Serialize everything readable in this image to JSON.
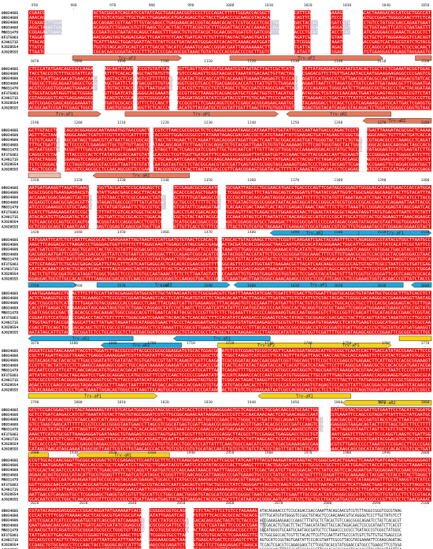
{
  "colors": {
    "conserved": "#ee1111",
    "partial": "#c9c9d8",
    "conserved_text": "#ffffff",
    "seq_text": "#111111",
    "primer_orange": "#e8785a",
    "primer_orange_light": "#f2b8a2",
    "primer_blue": "#1aa8de",
    "primer_yellow": "#f5d20d"
  },
  "sequence_names": [
    "OR934685",
    "OR934686",
    "OR934686",
    "OR934688",
    "MN831479",
    "KF375863",
    "KJ401715",
    "KJ620554",
    "AJ620555"
  ],
  "blocks": [
    {
      "ruler": [
        "950",
        "960",
        "970",
        "980",
        "990",
        "1000",
        "1010",
        "1020",
        "1030",
        "1040",
        "1050"
      ],
      "gaps": [
        [
          0.04,
          0.16
        ],
        [
          0.6,
          0.66
        ],
        [
          0.7,
          0.75
        ],
        [
          0.78,
          0.83
        ]
      ],
      "primers": [
        {
          "label": "Trv-aF3",
          "color": "orange",
          "dir": "right",
          "row": 0,
          "start": 0.11,
          "end": 0.38
        },
        {
          "label": "Trv-aF2",
          "color": "orange",
          "dir": "right",
          "row": 0,
          "start": 0.5,
          "end": 0.88
        },
        {
          "label": "",
          "color": "orange",
          "dir": "none",
          "row": 0,
          "start": 0.96,
          "end": 1.0
        }
      ]
    },
    {
      "ruler": [
        "1070",
        "1080",
        "1090",
        "1100",
        "1110",
        "1120",
        "1130",
        "1140",
        "1150",
        "1160"
      ],
      "gaps": [
        [
          0.16,
          0.19
        ],
        [
          0.26,
          0.27
        ],
        [
          0.35,
          0.37
        ],
        [
          0.66,
          0.68
        ]
      ],
      "primers": [
        {
          "label": "Trv-aF1",
          "color": "orange",
          "dir": "right",
          "row": 0,
          "start": 0.0,
          "end": 0.18
        },
        {
          "label": "Trv-aP1",
          "color": "orange",
          "dir": "right",
          "row": 0,
          "start": 0.24,
          "end": 0.62
        },
        {
          "label": "Trv-aR1",
          "color": "orange",
          "dir": "left",
          "row": 0,
          "start": 0.64,
          "end": 0.9
        },
        {
          "label": "Trv-aR2",
          "color": "orange",
          "dir": "left",
          "row": 1,
          "start": 0.83,
          "end": 1.0
        }
      ]
    },
    {
      "ruler": [
        "1190",
        "1200",
        "1210",
        "1220",
        "1230",
        "1240",
        "1250",
        "1260",
        "1270",
        "1280"
      ],
      "gaps": [
        [
          0.07,
          0.09
        ],
        [
          0.3,
          0.31
        ],
        [
          0.82,
          0.84
        ]
      ],
      "primers": [
        {
          "label": "",
          "color": "orange_light",
          "dir": "none",
          "row": 0,
          "start": 0.0,
          "end": 0.08
        },
        {
          "label": "Trv-aR1",
          "color": "orange",
          "dir": "left",
          "row": 0,
          "start": 0.16,
          "end": 0.4
        }
      ]
    },
    {
      "ruler": [
        "1310",
        "1320",
        "1330",
        "1340",
        "1350",
        "1360",
        "1370",
        "1380",
        "1390",
        "1400"
      ],
      "gaps": [
        [
          0.15,
          0.17
        ],
        [
          0.33,
          0.36
        ],
        [
          0.47,
          0.49
        ]
      ],
      "primers": [
        {
          "label": "Trv-aR2",
          "color": "blue",
          "dir": "left",
          "row": 0,
          "start": 0.6,
          "end": 0.82
        },
        {
          "label": "Trv-aF1",
          "color": "blue",
          "dir": "right",
          "row": 0,
          "start": 0.82,
          "end": 1.0
        }
      ]
    },
    {
      "ruler": [
        "1430",
        "1440",
        "1450",
        "1460",
        "1470",
        "1480",
        "1490",
        "1500",
        "1510",
        "1520"
      ],
      "gaps": [
        [
          0.47,
          0.48
        ]
      ],
      "primers": [
        {
          "label": "",
          "color": "blue",
          "dir": "right",
          "row": 0,
          "start": 0.0,
          "end": 0.12
        },
        {
          "label": "Trv-aF3",
          "color": "blue",
          "dir": "right",
          "row": 0,
          "start": 0.17,
          "end": 0.5
        },
        {
          "label": "Trv-aP1",
          "color": "blue",
          "dir": "left",
          "row": 0,
          "start": 0.51,
          "end": 0.93
        },
        {
          "label": "",
          "color": "blue",
          "dir": "left",
          "row": 0,
          "start": 0.95,
          "end": 1.0
        }
      ]
    },
    {
      "ruler": [
        "1550",
        "1560",
        "1570",
        "1580",
        "1590",
        "1600",
        "1610",
        "1620",
        "1630",
        "1640"
      ],
      "gaps": [
        [
          0.1,
          0.11
        ]
      ],
      "primers": [
        {
          "label": "Trv-aR1",
          "color": "blue",
          "dir": "left",
          "row": 0,
          "start": 0.0,
          "end": 0.26
        },
        {
          "label": "Trv-aR1",
          "color": "blue",
          "dir": "left",
          "row": 0,
          "start": 0.36,
          "end": 0.6
        },
        {
          "label": "",
          "color": "yellow",
          "dir": "none",
          "row": 0,
          "start": 0.92,
          "end": 1.0
        },
        {
          "label": "Trv-aR2",
          "color": "blue",
          "dir": "left",
          "row": 1,
          "start": 0.18,
          "end": 0.38
        },
        {
          "label": "Trv-aF2",
          "color": "yellow",
          "dir": "right",
          "row": 1,
          "start": 0.47,
          "end": 0.71
        },
        {
          "label": "Trv-aF1",
          "color": "yellow",
          "dir": "right",
          "row": 1,
          "start": 0.7,
          "end": 0.9
        },
        {
          "label": "Trv-aF3",
          "color": "yellow",
          "dir": "right",
          "row": 2,
          "start": 0.27,
          "end": 0.47
        }
      ]
    },
    {
      "ruler": [
        "1670",
        "1680",
        "1690",
        "1700",
        "1710",
        "1720",
        "1730",
        "1740",
        "1750",
        "1760",
        "1770"
      ],
      "gaps": [
        [
          0.47,
          0.48
        ]
      ],
      "primers": [
        {
          "label": "Trv-aP1",
          "color": "yellow",
          "dir": "right",
          "row": 0,
          "start": 0.0,
          "end": 0.32
        },
        {
          "label": "Trv-aR1",
          "color": "yellow",
          "dir": "left",
          "row": 0,
          "start": 0.57,
          "end": 0.8
        },
        {
          "label": "Trv-aR2",
          "color": "yellow",
          "dir": "left",
          "row": 1,
          "start": 0.78,
          "end": 1.0
        }
      ]
    },
    {
      "ruler": [
        "1790",
        "1800",
        "1810",
        "1820",
        "1830",
        "1840",
        "1850",
        "1860",
        "1870",
        "1880"
      ],
      "gaps": [
        [
          0.72,
          0.75
        ]
      ],
      "primers": [
        {
          "label": "",
          "color": "yellow",
          "dir": "none",
          "row": 0,
          "start": 0.0,
          "end": 0.05
        },
        {
          "label": "Trv-aR1",
          "color": "yellow",
          "dir": "left",
          "row": 0,
          "start": 0.12,
          "end": 0.35
        }
      ]
    },
    {
      "ruler": [
        "1900",
        "1910",
        "1920",
        "1930",
        "1940",
        "1950",
        "1960",
        "1970",
        "1980",
        "1990",
        "2000"
      ],
      "gaps": [],
      "primers": []
    },
    {
      "ruler": [
        "2020",
        "2030",
        "2040",
        "2050",
        "2060",
        "2070",
        "2080",
        "2090",
        "2100"
      ],
      "gaps": [
        [
          0.28,
          0.3
        ],
        [
          0.39,
          0.41
        ],
        [
          0.58,
          0.6
        ]
      ],
      "tail": {
        "start": 0.57
      },
      "primers": []
    }
  ]
}
